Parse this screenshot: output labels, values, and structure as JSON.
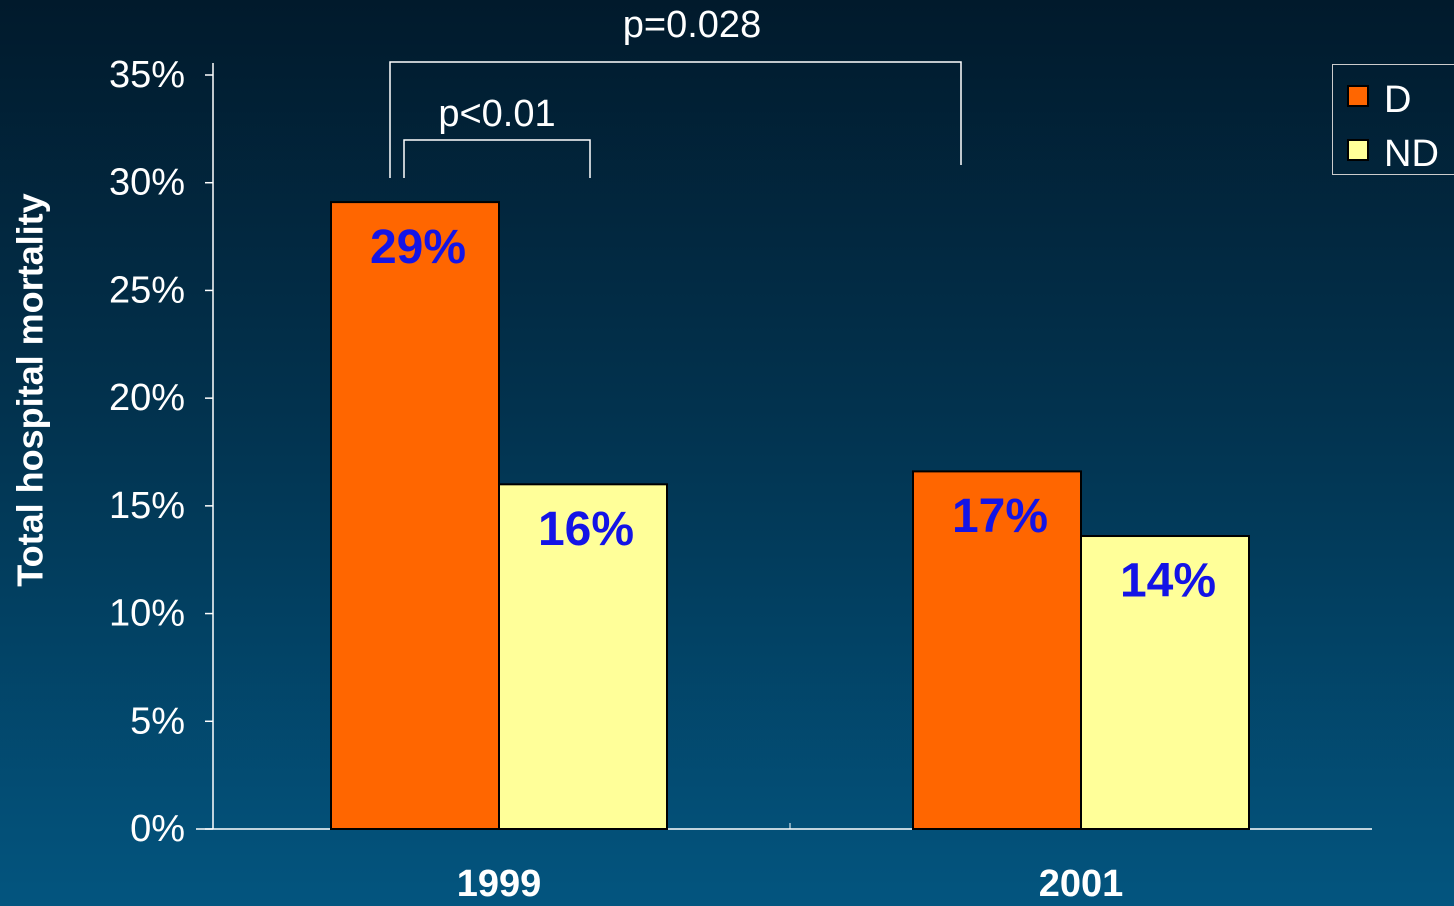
{
  "chart_data": {
    "type": "bar",
    "y_label": "Total hospital mortality",
    "categories": [
      "1999",
      "2001"
    ],
    "series": [
      {
        "name": "D",
        "color": "#ff6600",
        "values": [
          29.1,
          16.6
        ],
        "value_labels": [
          "29%",
          "17%"
        ]
      },
      {
        "name": "ND",
        "color": "#ffff99",
        "values": [
          16.0,
          13.6
        ],
        "value_labels": [
          "16%",
          "14%"
        ]
      }
    ],
    "ylim": [
      0,
      35
    ],
    "yticks": [
      {
        "value": 0,
        "label": "0%"
      },
      {
        "value": 5,
        "label": "5%"
      },
      {
        "value": 10,
        "label": "10%"
      },
      {
        "value": 15,
        "label": "15%"
      },
      {
        "value": 20,
        "label": "20%"
      },
      {
        "value": 25,
        "label": "25%"
      },
      {
        "value": 30,
        "label": "30%"
      },
      {
        "value": 35,
        "label": "35%"
      }
    ],
    "legend": "top-right",
    "annotations": [
      "p<0.01",
      "p=0.028"
    ]
  }
}
